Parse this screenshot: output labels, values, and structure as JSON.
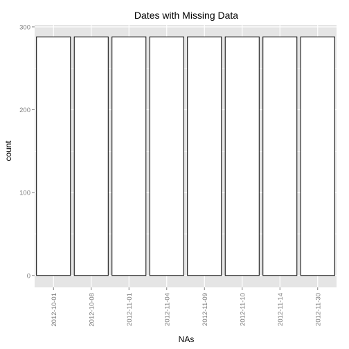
{
  "chart_data": {
    "type": "bar",
    "title": "Dates with Missing Data",
    "xlabel": "NAs",
    "ylabel": "count",
    "categories": [
      "2012-10-01",
      "2012-10-08",
      "2012-11-01",
      "2012-11-04",
      "2012-11-09",
      "2012-11-10",
      "2012-11-14",
      "2012-11-30"
    ],
    "values": [
      288,
      288,
      288,
      288,
      288,
      288,
      288,
      288
    ],
    "ylim": [
      -14.4,
      302.4
    ],
    "yticks": [
      0,
      100,
      200,
      300
    ],
    "grid": true,
    "legend": "none",
    "colors": {
      "panel": "#e5e5e5",
      "grid": "#ffffff",
      "bar_fill": "#ffffff",
      "bar_outline": "#000000",
      "tick": "#7f7f7f"
    }
  }
}
